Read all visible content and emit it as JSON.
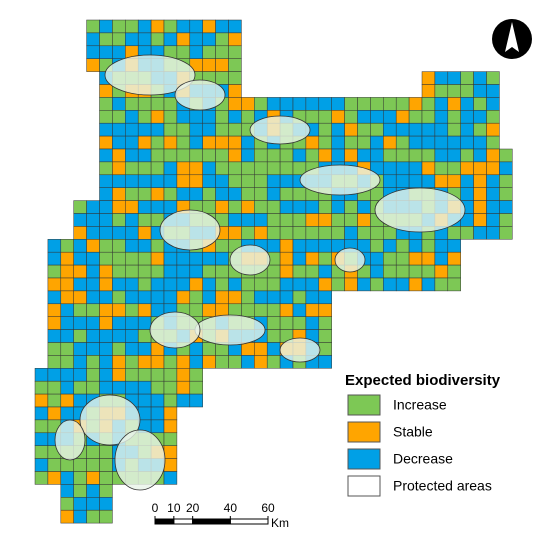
{
  "legend": {
    "title": "Expected biodiversity",
    "items": [
      {
        "label": "Increase",
        "color": "#7dc855"
      },
      {
        "label": "Stable",
        "color": "#ffa500"
      },
      {
        "label": "Decrease",
        "color": "#00a0e6"
      },
      {
        "label": "Protected areas",
        "color": "#ffffff"
      }
    ]
  },
  "scale_bar": {
    "ticks": [
      0,
      10,
      20,
      40,
      60
    ],
    "unit": "Km"
  }
}
